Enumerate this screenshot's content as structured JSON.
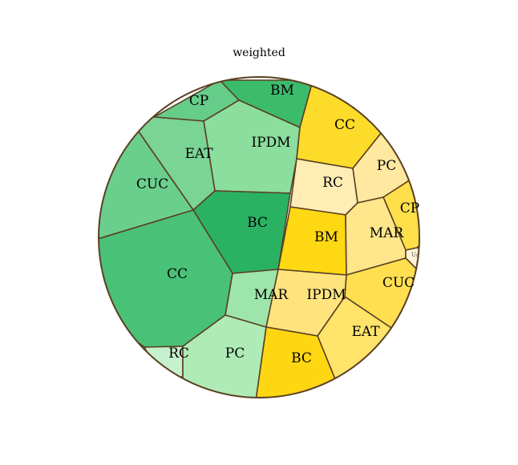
{
  "title": "weighted",
  "colors": {
    "border": "#5a4022"
  },
  "cells": [
    {
      "label": "BM",
      "color": "#3dbb6c"
    },
    {
      "label": "CP",
      "color": "#66cc8a"
    },
    {
      "label": "IPDM",
      "color": "#8bde9d"
    },
    {
      "label": "EAT",
      "color": "#7ad495"
    },
    {
      "label": "CUC",
      "color": "#6acf8d"
    },
    {
      "label": "BC",
      "color": "#2ab262"
    },
    {
      "label": "CC",
      "color": "#49c176"
    },
    {
      "label": "MAR",
      "color": "#9de5ab"
    },
    {
      "label": "RC",
      "color": "#c7f1cc"
    },
    {
      "label": "PC",
      "color": "#aeebb6"
    },
    {
      "label": "CC",
      "color": "#fddb2a"
    },
    {
      "label": "PC",
      "color": "#ffe9a0"
    },
    {
      "label": "RC",
      "color": "#ffedb5"
    },
    {
      "label": "CP",
      "color": "#ffe04a"
    },
    {
      "label": "BM",
      "color": "#ffd814"
    },
    {
      "label": "MAR",
      "color": "#ffe68b"
    },
    {
      "label": "Ua",
      "color": "#fff4d6"
    },
    {
      "label": "IPDM",
      "color": "#ffe47e"
    },
    {
      "label": "CUC",
      "color": "#ffdf50"
    },
    {
      "label": "EAT",
      "color": "#ffe36a"
    },
    {
      "label": "BC",
      "color": "#ffd612"
    }
  ]
}
